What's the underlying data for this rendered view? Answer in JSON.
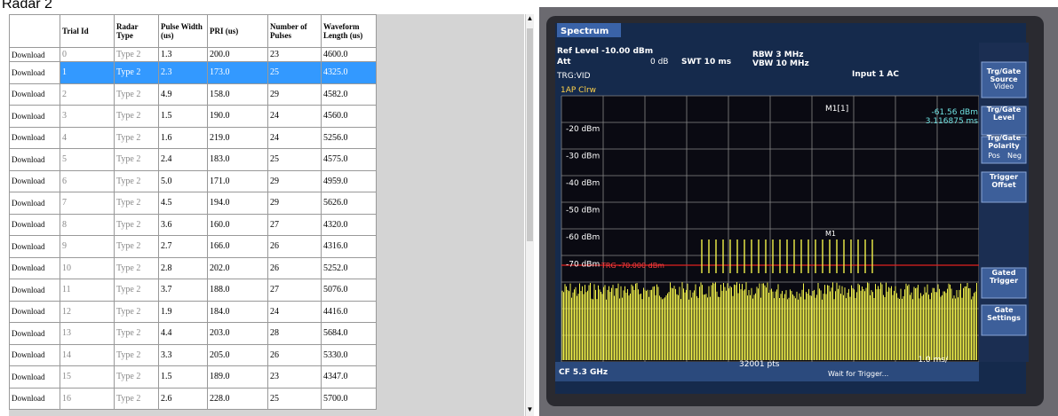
{
  "header": {
    "title": "Radar 2"
  },
  "table": {
    "columns": [
      "",
      "Trial Id",
      "Radar Type",
      "Pulse Width (us)",
      "PRI (us)",
      "Number of Pulses",
      "Waveform Length (us)"
    ],
    "rows": [
      [
        "Download",
        "0",
        "Type 2",
        "1.3",
        "200.0",
        "23",
        "4600.0"
      ],
      [
        "Download",
        "1",
        "Type 2",
        "2.3",
        "173.0",
        "25",
        "4325.0"
      ],
      [
        "Download",
        "2",
        "Type 2",
        "4.9",
        "158.0",
        "29",
        "4582.0"
      ],
      [
        "Download",
        "3",
        "Type 2",
        "1.5",
        "190.0",
        "24",
        "4560.0"
      ],
      [
        "Download",
        "4",
        "Type 2",
        "1.6",
        "219.0",
        "24",
        "5256.0"
      ],
      [
        "Download",
        "5",
        "Type 2",
        "2.4",
        "183.0",
        "25",
        "4575.0"
      ],
      [
        "Download",
        "6",
        "Type 2",
        "5.0",
        "171.0",
        "29",
        "4959.0"
      ],
      [
        "Download",
        "7",
        "Type 2",
        "4.5",
        "194.0",
        "29",
        "5626.0"
      ],
      [
        "Download",
        "8",
        "Type 2",
        "3.6",
        "160.0",
        "27",
        "4320.0"
      ],
      [
        "Download",
        "9",
        "Type 2",
        "2.7",
        "166.0",
        "26",
        "4316.0"
      ],
      [
        "Download",
        "10",
        "Type 2",
        "2.8",
        "202.0",
        "26",
        "5252.0"
      ],
      [
        "Download",
        "11",
        "Type 2",
        "3.7",
        "188.0",
        "27",
        "5076.0"
      ],
      [
        "Download",
        "12",
        "Type 2",
        "1.9",
        "184.0",
        "24",
        "4416.0"
      ],
      [
        "Download",
        "13",
        "Type 2",
        "4.4",
        "203.0",
        "28",
        "5684.0"
      ],
      [
        "Download",
        "14",
        "Type 2",
        "3.3",
        "205.0",
        "26",
        "5330.0"
      ],
      [
        "Download",
        "15",
        "Type 2",
        "1.5",
        "189.0",
        "23",
        "4347.0"
      ],
      [
        "Download",
        "16",
        "Type 2",
        "2.6",
        "228.0",
        "25",
        "5700.0"
      ]
    ]
  },
  "analyzer": {
    "tab": "Spectrum",
    "ref_level": "Ref Level -10.00 dBm",
    "att": "Att",
    "att_value": "0 dB",
    "swt": "SWT 10 ms",
    "rbw": "RBW 3 MHz",
    "vbw": "VBW 10 MHz",
    "input": "Input 1 AC",
    "trg": "TRG:VID",
    "trace": "1AP Clrw",
    "marker": "M1[1]",
    "marker_level": "-61.56 dBm",
    "marker_time": "3.116875 ms",
    "marker_label": "M1",
    "levels": [
      "-20 dBm",
      "-30 dBm",
      "-40 dBm",
      "-50 dBm",
      "-60 dBm",
      "-70 dBm"
    ],
    "trigger_line": "TRG -70.000 dBm",
    "cf": "CF 5.3 GHz",
    "pts": "32001 pts",
    "span": "1.0 ms/",
    "status": "Wait for Trigger...",
    "softkeys": [
      "Trg/Gate Source",
      "Video",
      "Trg/Gate Level",
      "Trg/Gate Polarity",
      "Pos",
      "Neg",
      "Trigger Offset",
      "Gated Trigger",
      "Gate Settings"
    ]
  }
}
